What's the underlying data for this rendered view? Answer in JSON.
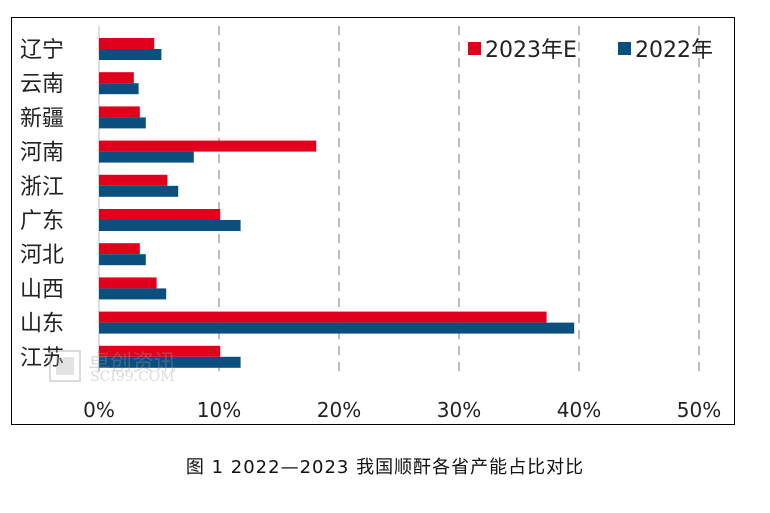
{
  "chart_data": {
    "type": "bar",
    "orientation": "horizontal",
    "categories": [
      "辽宁",
      "云南",
      "新疆",
      "河南",
      "浙江",
      "广东",
      "河北",
      "山西",
      "山东",
      "江苏"
    ],
    "series": [
      {
        "name": "2023年E",
        "color": "#e0001b",
        "values": [
          4.6,
          2.9,
          3.4,
          18.1,
          5.7,
          10.1,
          3.4,
          4.8,
          37.3,
          10.1
        ]
      },
      {
        "name": "2022年",
        "color": "#0a4f7e",
        "values": [
          5.2,
          3.3,
          3.9,
          7.9,
          6.6,
          11.8,
          3.9,
          5.6,
          39.6,
          11.8
        ]
      }
    ],
    "xlim": [
      0,
      50
    ],
    "xticks": [
      "0%",
      "10%",
      "20%",
      "30%",
      "40%",
      "50%"
    ],
    "grid": true,
    "legend_position": "top-right"
  },
  "caption": "图 1  2022—2023 我国顺酐各省产能占比对比",
  "watermark": {
    "cn": "卓创资讯",
    "en": "SCI99.COM"
  }
}
